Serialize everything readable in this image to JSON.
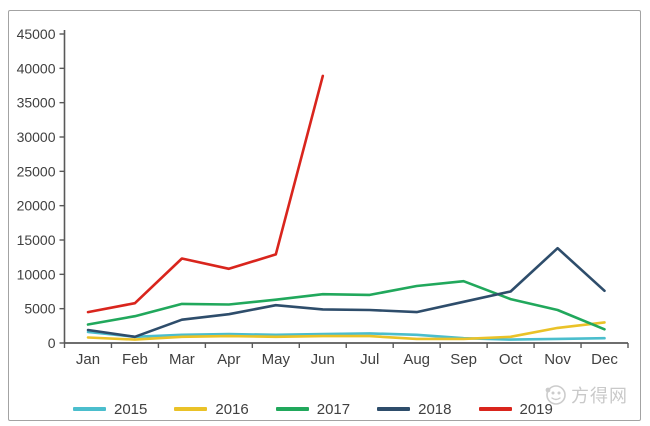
{
  "chart_data": {
    "type": "line",
    "title": "",
    "xlabel": "",
    "ylabel": "",
    "categories": [
      "Jan",
      "Feb",
      "Mar",
      "Apr",
      "May",
      "Jun",
      "Jul",
      "Aug",
      "Sep",
      "Oct",
      "Nov",
      "Dec"
    ],
    "series": [
      {
        "name": "2015",
        "color": "#4BBECD",
        "values": [
          1600,
          900,
          1200,
          1300,
          1200,
          1300,
          1400,
          1200,
          700,
          500,
          600,
          700
        ]
      },
      {
        "name": "2016",
        "color": "#EAC228",
        "values": [
          800,
          500,
          900,
          1000,
          900,
          1000,
          1000,
          600,
          600,
          900,
          2200,
          3000
        ]
      },
      {
        "name": "2017",
        "color": "#21A85C",
        "values": [
          2700,
          3900,
          5700,
          5600,
          6300,
          7100,
          7000,
          8300,
          9000,
          6400,
          4800,
          2000
        ]
      },
      {
        "name": "2018",
        "color": "#2E4D6B",
        "values": [
          1900,
          900,
          3400,
          4200,
          5500,
          4900,
          4800,
          4500,
          6000,
          7500,
          13800,
          7600
        ]
      },
      {
        "name": "2019",
        "color": "#D9251D",
        "values": [
          4500,
          5800,
          12300,
          10800,
          12900,
          38900,
          null,
          null,
          null,
          null,
          null,
          null
        ]
      }
    ],
    "ylim": [
      0,
      45000
    ],
    "ytick_step": 5000,
    "grid": false,
    "legend_position": "bottom",
    "axis_color": "#595959",
    "label_color": "#404040"
  },
  "watermark": {
    "text": "方得网"
  }
}
